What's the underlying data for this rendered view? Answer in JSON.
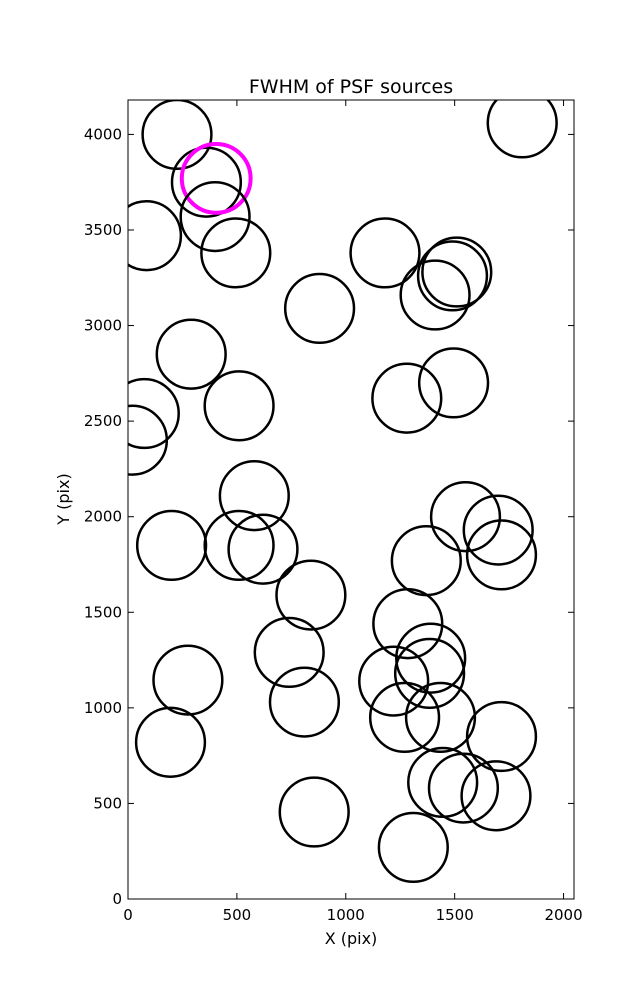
{
  "chart_data": {
    "type": "scatter",
    "title": "FWHM of PSF sources",
    "xlabel": "X (pix)",
    "ylabel": "Y (pix)",
    "xlim": [
      0,
      2048
    ],
    "ylim": [
      0,
      4180
    ],
    "xticks": [
      0,
      500,
      1000,
      1500,
      2000
    ],
    "yticks": [
      0,
      500,
      1000,
      1500,
      2000,
      2500,
      3000,
      3500,
      4000
    ],
    "grid": false,
    "marker": "open-circle",
    "default_color": "#000000",
    "highlight_color": "#ff00ff",
    "circle_radius": 180,
    "points": [
      {
        "x": 225,
        "y": 4000
      },
      {
        "x": 360,
        "y": 3750
      },
      {
        "x": 405,
        "y": 3770,
        "highlight": true
      },
      {
        "x": 400,
        "y": 3570
      },
      {
        "x": 85,
        "y": 3470
      },
      {
        "x": 495,
        "y": 3380
      },
      {
        "x": 1810,
        "y": 4060
      },
      {
        "x": 1180,
        "y": 3380
      },
      {
        "x": 1510,
        "y": 3280
      },
      {
        "x": 1490,
        "y": 3260
      },
      {
        "x": 1410,
        "y": 3160
      },
      {
        "x": 880,
        "y": 3090
      },
      {
        "x": 290,
        "y": 2850
      },
      {
        "x": 1495,
        "y": 2700
      },
      {
        "x": 1280,
        "y": 2620
      },
      {
        "x": 75,
        "y": 2540
      },
      {
        "x": 510,
        "y": 2580
      },
      {
        "x": 20,
        "y": 2400
      },
      {
        "x": 580,
        "y": 2110
      },
      {
        "x": 1550,
        "y": 2000
      },
      {
        "x": 1700,
        "y": 1930
      },
      {
        "x": 1715,
        "y": 1800
      },
      {
        "x": 200,
        "y": 1850
      },
      {
        "x": 510,
        "y": 1850
      },
      {
        "x": 620,
        "y": 1830
      },
      {
        "x": 1370,
        "y": 1770
      },
      {
        "x": 840,
        "y": 1590
      },
      {
        "x": 1285,
        "y": 1440
      },
      {
        "x": 1390,
        "y": 1260
      },
      {
        "x": 740,
        "y": 1290
      },
      {
        "x": 1385,
        "y": 1180
      },
      {
        "x": 1220,
        "y": 1140
      },
      {
        "x": 275,
        "y": 1145
      },
      {
        "x": 810,
        "y": 1030
      },
      {
        "x": 1435,
        "y": 950
      },
      {
        "x": 1270,
        "y": 950
      },
      {
        "x": 1715,
        "y": 850
      },
      {
        "x": 195,
        "y": 820
      },
      {
        "x": 1445,
        "y": 610
      },
      {
        "x": 1540,
        "y": 580
      },
      {
        "x": 1690,
        "y": 540
      },
      {
        "x": 855,
        "y": 455
      },
      {
        "x": 1310,
        "y": 270
      }
    ]
  }
}
